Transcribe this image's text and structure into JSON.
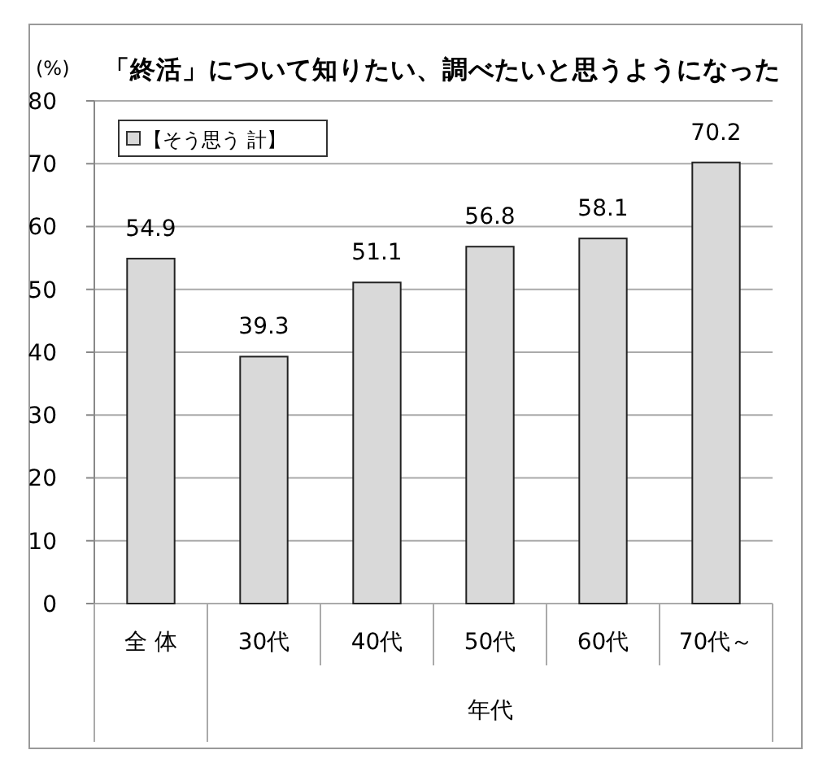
{
  "chart_data": {
    "type": "bar",
    "title": "「終活」について知りたい、調べたいと思うようになった",
    "ylabel": "(%)",
    "xlabel": "年代",
    "categories": [
      "全 体",
      "30代",
      "40代",
      "50代",
      "60代",
      "70代～"
    ],
    "series": [
      {
        "name": "【そう思う 計】",
        "color": "#d9d9d9",
        "values": [
          54.9,
          39.3,
          51.1,
          56.8,
          58.1,
          70.2
        ]
      }
    ],
    "ylim": [
      0,
      80
    ],
    "yticks": [
      0,
      10,
      20,
      30,
      40,
      50,
      60,
      70,
      80
    ],
    "grid": "y",
    "legend": "top left",
    "data_labels": true
  }
}
